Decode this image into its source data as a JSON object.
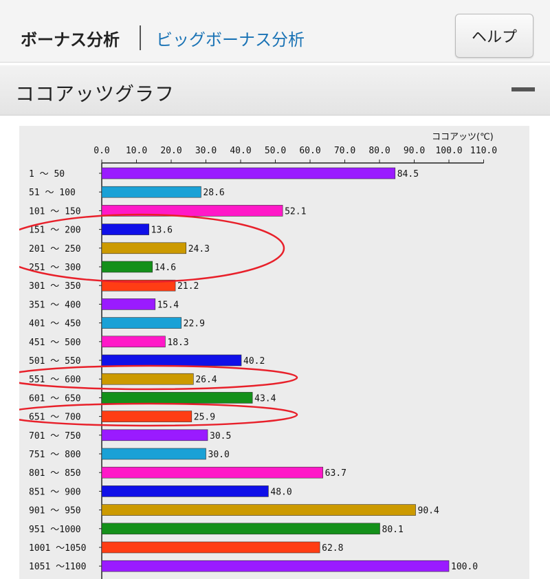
{
  "header": {
    "tab_current": "ボーナス分析",
    "tab_link": "ビッグボーナス分析",
    "help_label": "ヘルプ"
  },
  "section": {
    "title": "ココアッツグラフ",
    "collapse_icon": "minus-icon"
  },
  "annotations": {
    "color": "#e8202a",
    "highlighted_categories": [
      "151 ～ 200",
      "201 ～ 250",
      "251 ～ 300",
      "551 ～ 600",
      "651 ～ 700"
    ]
  },
  "chart_data": {
    "type": "bar",
    "orientation": "horizontal",
    "unit_label": "ココアッツ(℃)",
    "xlim": [
      0,
      110
    ],
    "ticks": [
      "0.0",
      "10.0",
      "20.0",
      "30.0",
      "40.0",
      "50.0",
      "60.0",
      "70.0",
      "80.0",
      "90.0",
      "100.0",
      "110.0"
    ],
    "categories": [
      "1 ～ 50",
      "51 ～ 100",
      "101 ～ 150",
      "151 ～ 200",
      "201 ～ 250",
      "251 ～ 300",
      "301 ～ 350",
      "351 ～ 400",
      "401 ～ 450",
      "451 ～ 500",
      "501 ～ 550",
      "551 ～ 600",
      "601 ～ 650",
      "651 ～ 700",
      "701 ～ 750",
      "751 ～ 800",
      "801 ～ 850",
      "851 ～ 900",
      "901 ～ 950",
      "951 ～1000",
      "1001 ～1050",
      "1051 ～1100"
    ],
    "values": [
      84.5,
      28.6,
      52.1,
      13.6,
      24.3,
      14.6,
      21.2,
      15.4,
      22.9,
      18.3,
      40.2,
      26.4,
      43.4,
      25.9,
      30.5,
      30.0,
      63.7,
      48.0,
      90.4,
      80.1,
      62.8,
      100.0
    ],
    "value_labels": [
      "84.5",
      "28.6",
      "52.1",
      "13.6",
      "24.3",
      "14.6",
      "21.2",
      "15.4",
      "22.9",
      "18.3",
      "40.2",
      "26.4",
      "43.4",
      "25.9",
      "30.5",
      "30.0",
      "63.7",
      "48.0",
      "90.4",
      "80.1",
      "62.8",
      "100.0"
    ],
    "colors": [
      "#9a1bff",
      "#1aa1d6",
      "#ff19c8",
      "#1010e8",
      "#cc9a00",
      "#14901a",
      "#ff3d14",
      "#9a1bff",
      "#1aa1d6",
      "#ff19c8",
      "#1010e8",
      "#cc9a00",
      "#14901a",
      "#ff3d14",
      "#9a1bff",
      "#1aa1d6",
      "#ff19c8",
      "#1010e8",
      "#cc9a00",
      "#14901a",
      "#ff3d14",
      "#9a1bff"
    ]
  }
}
